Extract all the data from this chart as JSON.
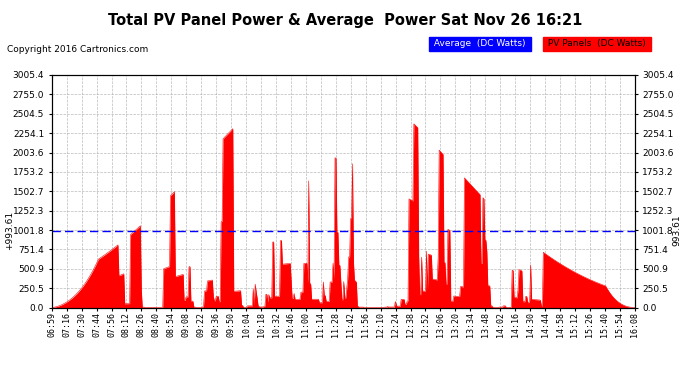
{
  "title": "Total PV Panel Power & Average  Power Sat Nov 26 16:21",
  "copyright": "Copyright 2016 Cartronics.com",
  "legend_avg": "Average  (DC Watts)",
  "legend_pv": "PV Panels  (DC Watts)",
  "avg_value": 993.61,
  "y_max": 3005.4,
  "y_ticks": [
    0.0,
    250.5,
    500.9,
    751.4,
    1001.8,
    1252.3,
    1502.7,
    1753.2,
    2003.6,
    2254.1,
    2504.5,
    2755.0,
    3005.4
  ],
  "bar_color": "#FF0000",
  "avg_line_color": "#0000FF",
  "bg_color": "#FFFFFF",
  "grid_color": "#AAAAAA",
  "x_labels": [
    "06:59",
    "07:16",
    "07:30",
    "07:44",
    "07:56",
    "08:12",
    "08:26",
    "08:40",
    "08:54",
    "09:08",
    "09:22",
    "09:36",
    "09:50",
    "10:04",
    "10:18",
    "10:32",
    "10:46",
    "11:00",
    "11:14",
    "11:28",
    "11:42",
    "11:56",
    "12:10",
    "12:24",
    "12:38",
    "12:52",
    "13:06",
    "13:20",
    "13:34",
    "13:48",
    "14:02",
    "14:16",
    "14:30",
    "14:44",
    "14:58",
    "15:12",
    "15:26",
    "15:40",
    "15:54",
    "16:08"
  ]
}
